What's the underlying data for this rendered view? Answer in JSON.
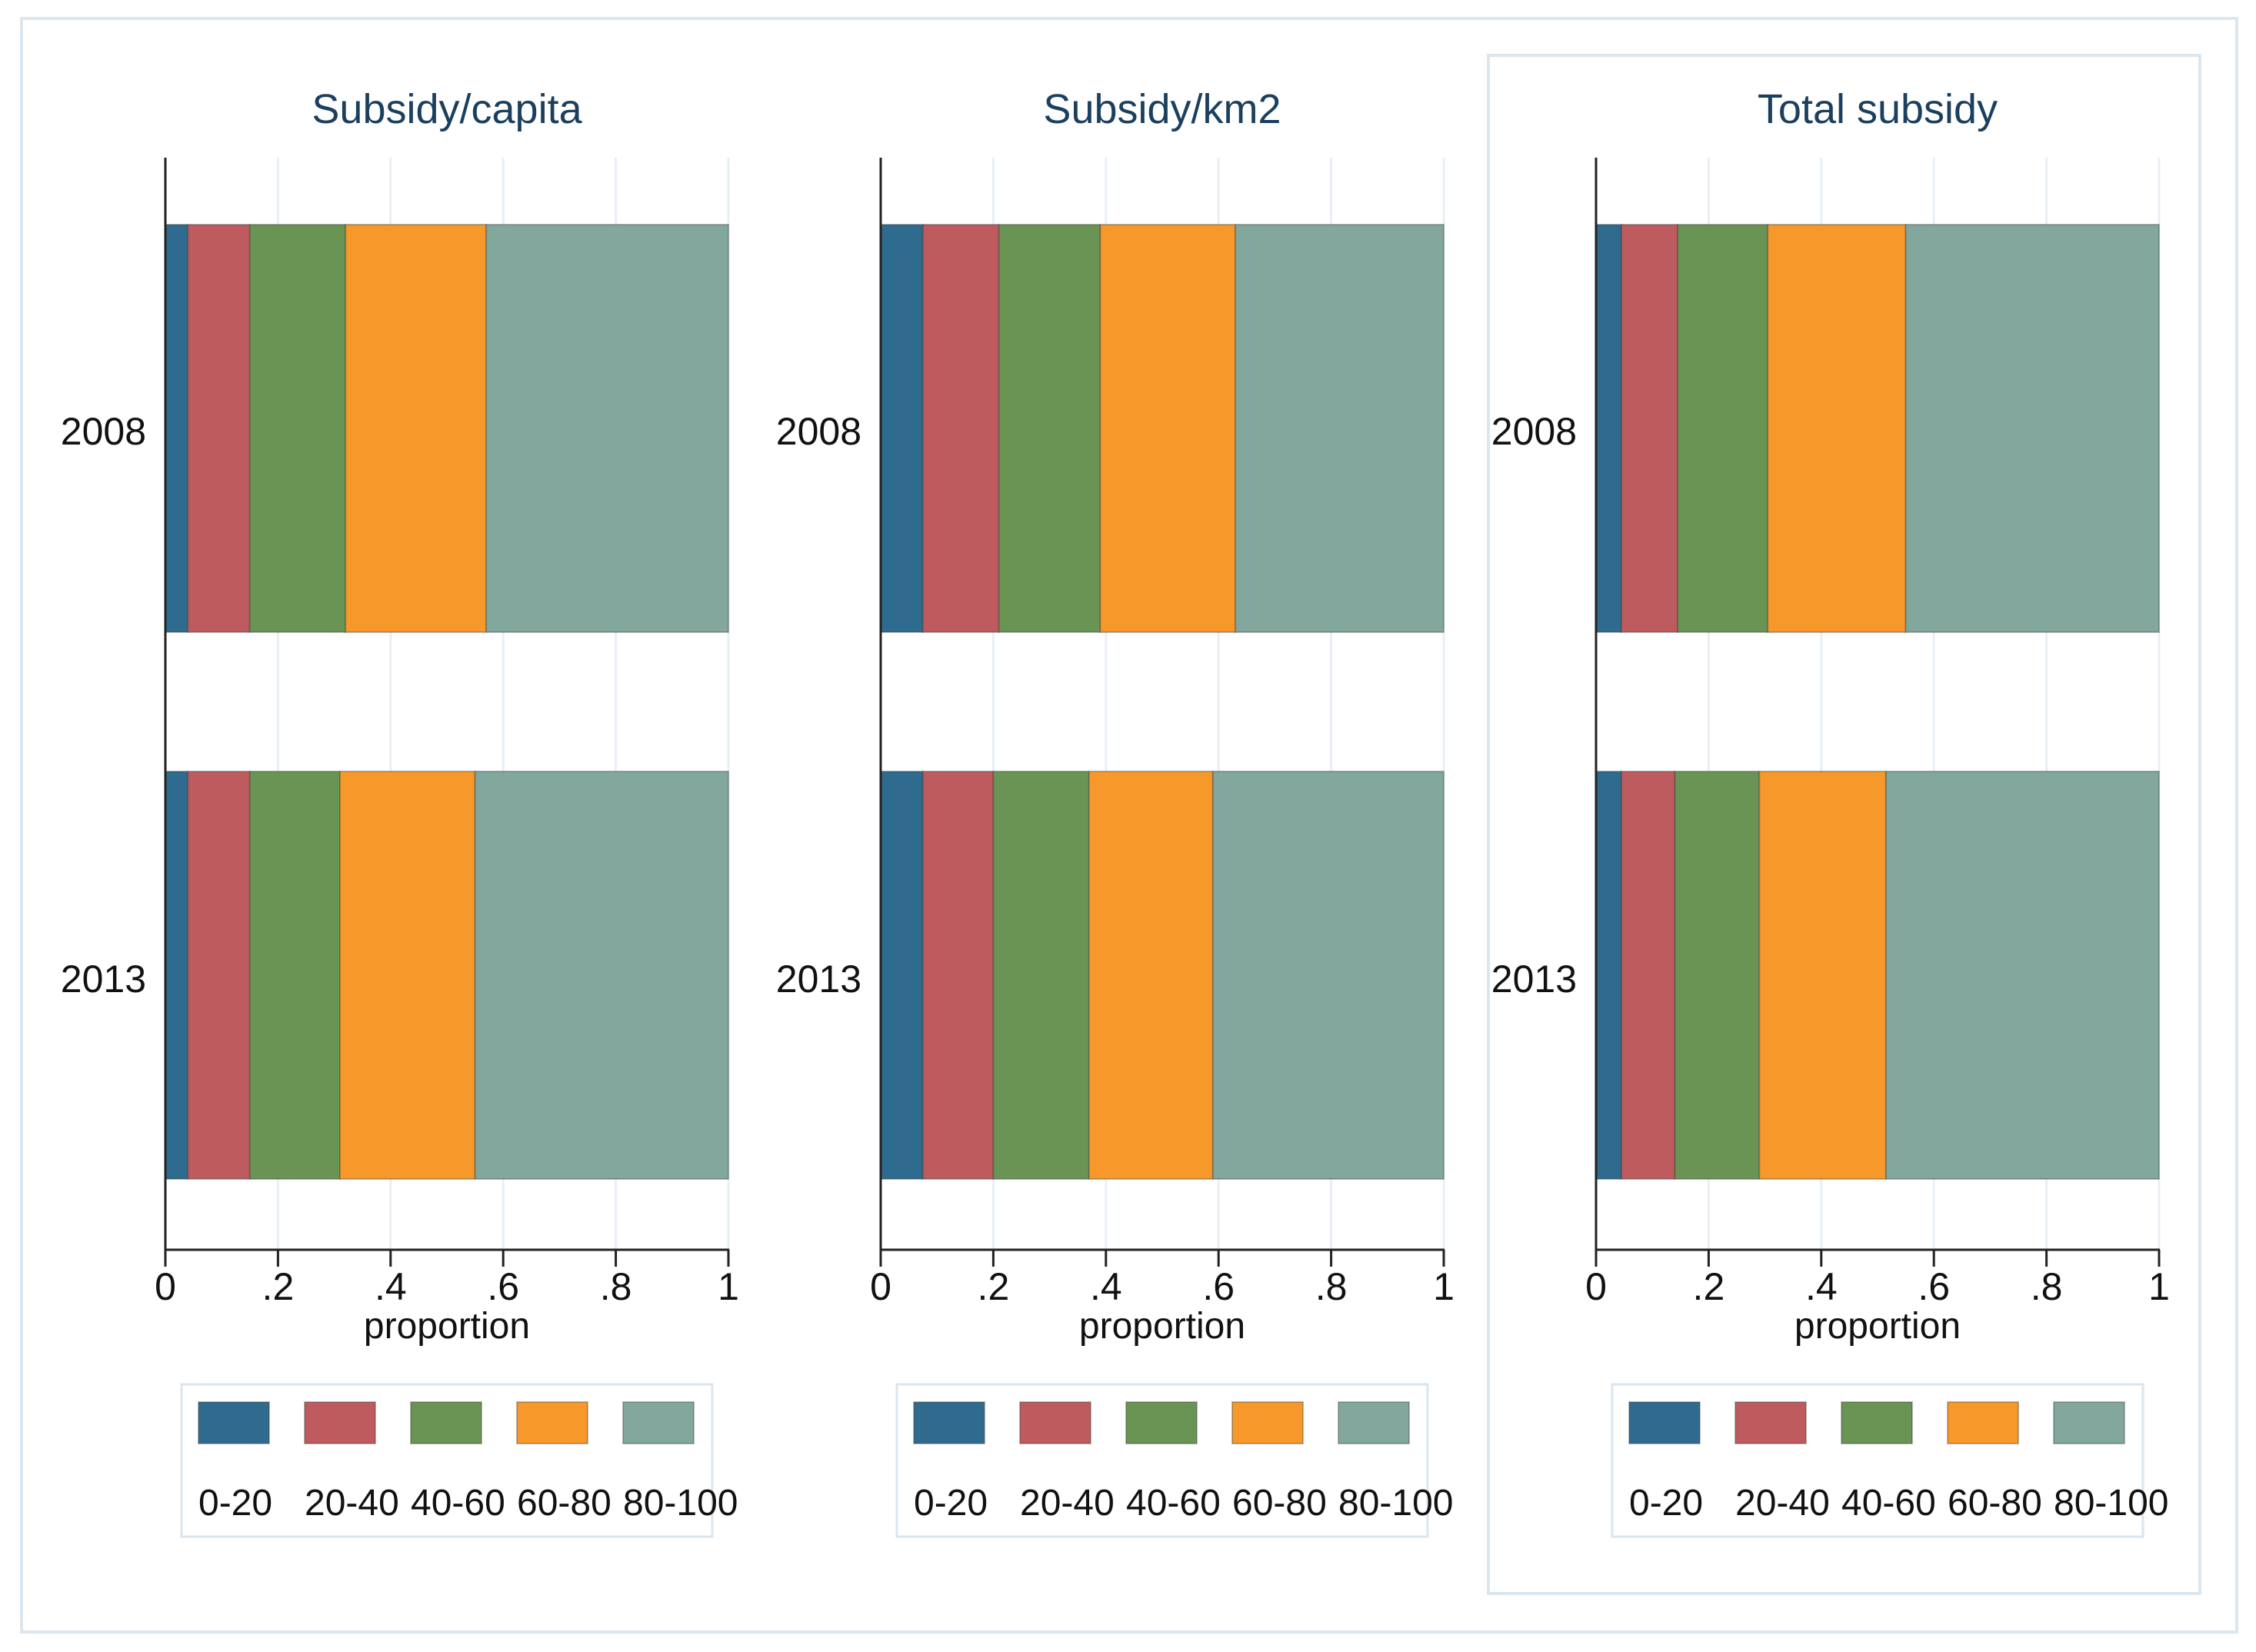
{
  "colors": {
    "page_border": "#dbe6ef",
    "panel_border": "#dbe6ef",
    "title": "#1b3f5e",
    "text": "#111111",
    "axis": "#222222",
    "grid": "#e8eff5",
    "segments": [
      "#2f6a8f",
      "#bd5b5e",
      "#6a9453",
      "#f7982a",
      "#82a89d"
    ]
  },
  "chart_data": [
    {
      "type": "bar",
      "orientation": "horizontal",
      "stacked": true,
      "title": "Subsidy/capita",
      "xlabel": "proportion",
      "xlim": [
        0,
        1
      ],
      "x_ticks": [
        "0",
        ".2",
        ".4",
        ".6",
        ".8",
        "1"
      ],
      "categories": [
        "2008",
        "2013"
      ],
      "series": [
        {
          "name": "0-20",
          "values": [
            0.04,
            0.04
          ]
        },
        {
          "name": "20-40",
          "values": [
            0.11,
            0.11
          ]
        },
        {
          "name": "40-60",
          "values": [
            0.17,
            0.16
          ]
        },
        {
          "name": "60-80",
          "values": [
            0.25,
            0.24
          ]
        },
        {
          "name": "80-100",
          "values": [
            0.43,
            0.45
          ]
        }
      ],
      "legend": {
        "labels": [
          "0-20",
          "20-40",
          "40-60",
          "60-80",
          "80-100"
        ],
        "position": "bottom"
      },
      "highlighted": false
    },
    {
      "type": "bar",
      "orientation": "horizontal",
      "stacked": true,
      "title": "Subsidy/km2",
      "xlabel": "proportion",
      "xlim": [
        0,
        1
      ],
      "x_ticks": [
        "0",
        ".2",
        ".4",
        ".6",
        ".8",
        "1"
      ],
      "categories": [
        "2008",
        "2013"
      ],
      "series": [
        {
          "name": "0-20",
          "values": [
            0.075,
            0.075
          ]
        },
        {
          "name": "20-40",
          "values": [
            0.135,
            0.125
          ]
        },
        {
          "name": "40-60",
          "values": [
            0.18,
            0.17
          ]
        },
        {
          "name": "60-80",
          "values": [
            0.24,
            0.22
          ]
        },
        {
          "name": "80-100",
          "values": [
            0.37,
            0.41
          ]
        }
      ],
      "legend": {
        "labels": [
          "0-20",
          "20-40",
          "40-60",
          "60-80",
          "80-100"
        ],
        "position": "bottom"
      },
      "highlighted": false
    },
    {
      "type": "bar",
      "orientation": "horizontal",
      "stacked": true,
      "title": "Total subsidy",
      "xlabel": "proportion",
      "xlim": [
        0,
        1
      ],
      "x_ticks": [
        "0",
        ".2",
        ".4",
        ".6",
        ".8",
        "1"
      ],
      "categories": [
        "2008",
        "2013"
      ],
      "series": [
        {
          "name": "0-20",
          "values": [
            0.045,
            0.045
          ]
        },
        {
          "name": "20-40",
          "values": [
            0.1,
            0.095
          ]
        },
        {
          "name": "40-60",
          "values": [
            0.16,
            0.15
          ]
        },
        {
          "name": "60-80",
          "values": [
            0.245,
            0.225
          ]
        },
        {
          "name": "80-100",
          "values": [
            0.45,
            0.485
          ]
        }
      ],
      "legend": {
        "labels": [
          "0-20",
          "20-40",
          "40-60",
          "60-80",
          "80-100"
        ],
        "position": "bottom"
      },
      "highlighted": true
    }
  ]
}
